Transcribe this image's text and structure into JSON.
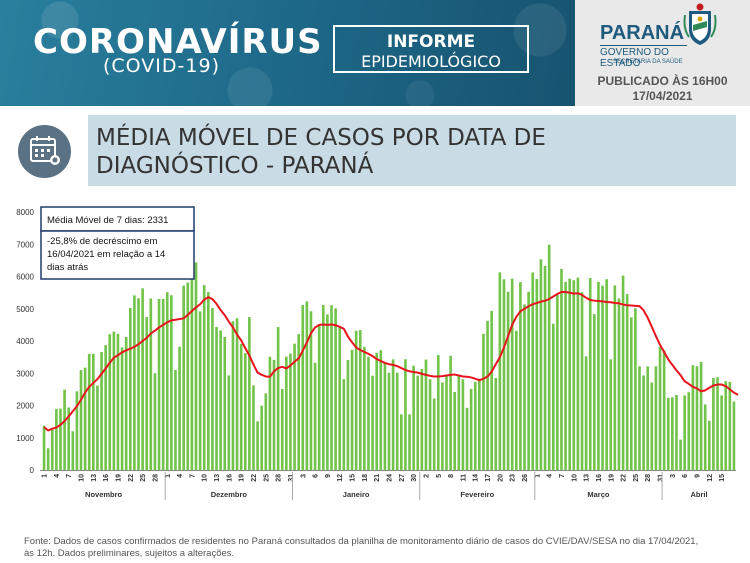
{
  "header": {
    "brand_title": "CORONAVÍRUS",
    "brand_subtitle": "(COVID-19)",
    "informe_line1": "INFORME",
    "informe_line2": "EPIDEMIOLÓGICO",
    "state_name": "PARANÁ",
    "government": "GOVERNO DO ESTADO",
    "secretariat": "SECRETARIA DA SAÚDE",
    "published": "PUBLICADO ÀS 16H00",
    "date": "17/04/2021"
  },
  "section_title_line1": "MÉDIA MÓVEL DE CASOS POR DATA DE",
  "section_title_line2": "DIAGNÓSTICO - PARANÁ",
  "annotation_avg": "Média Móvel de 7 dias: 2331",
  "annotation_change": [
    "-25,8% de decréscimo em",
    "16/04/2021 em relação a 14",
    "dias atrás"
  ],
  "source_line1": "Fonte: Dados de casos confirmados de residentes no Paraná consultados da planilha de monitoramento diário de casos do CVIE/DAV/SESA no dia 17/04/2021,",
  "source_line2": "às 12h. Dados preliminares, sujeitos a alterações.",
  "colors": {
    "bars": "#72c34a",
    "moving_average": "#e8131d",
    "title_box": "#c9dbe4",
    "banner": "#1a5f7a"
  },
  "icons": {
    "section": "calendar-virus-icon",
    "coat_of_arms": "parana-coat-of-arms-icon"
  },
  "chart_data": {
    "type": "bar",
    "ylim": [
      0,
      8000
    ],
    "yticks": [
      0,
      1000,
      2000,
      3000,
      4000,
      5000,
      6000,
      7000,
      8000
    ],
    "grid": false,
    "series": [
      {
        "name": "Casos",
        "type": "bar",
        "values": [
          1375,
          676,
          1254,
          1896,
          1904,
          2492,
          1938,
          1201,
          2440,
          3097,
          3175,
          3599,
          3603,
          2619,
          3658,
          3872,
          4212,
          4292,
          4223,
          3802,
          4125,
          5025,
          5414,
          5325,
          5634,
          4742,
          5317,
          3000,
          5302,
          5305,
          5514,
          5418,
          3102,
          3822,
          5717,
          5814,
          6437,
          6437,
          4917,
          5733,
          5517,
          5021,
          4435,
          4326,
          4125,
          2933,
          4614,
          4704,
          3913,
          3624,
          4746,
          2624,
          1510,
          1993,
          2376,
          3512,
          3414,
          4432,
          2512,
          3516,
          3612,
          3917,
          4211,
          5117,
          5227,
          4924,
          3325,
          4511,
          5117,
          4824,
          5112,
          5012,
          4417,
          2817,
          3412,
          3724,
          4318,
          4338,
          3817,
          3512,
          2924,
          3632,
          3713,
          3332,
          3015,
          3432,
          3017,
          1727,
          3435,
          1727,
          3235,
          2927,
          3134,
          3424,
          2817,
          2217,
          3563,
          2714,
          2925,
          3542,
          2417,
          2932,
          2814,
          1927,
          2516,
          2734,
          2834,
          4223,
          4628,
          4934,
          2854,
          6131,
          5913,
          5524,
          5934,
          4317,
          5826,
          5135,
          5526,
          6125,
          5924,
          6532,
          6332,
          6987,
          4535,
          5434,
          6235,
          5835,
          5934,
          5886,
          5965,
          5516,
          3523,
          5953,
          4834,
          5834,
          5716,
          5915,
          3432,
          5724,
          5316,
          6029,
          5455,
          4735,
          5015,
          3217,
          2931,
          3215,
          2712,
          3217,
          3812,
          3713,
          2238,
          2254,
          2326,
          942,
          2312,
          2413,
          3248,
          3217,
          3356,
          2032,
          1528,
          2854,
          2874,
          2312,
          2755,
          2732,
          2122
        ]
      },
      {
        "name": "Média Móvel de 7 dias",
        "type": "line",
        "values": [
          1330,
          1225,
          1280,
          1320,
          1400,
          1520,
          1660,
          1820,
          1980,
          2180,
          2400,
          2580,
          2700,
          2820,
          2980,
          3150,
          3330,
          3480,
          3560,
          3650,
          3710,
          3760,
          3820,
          3900,
          4000,
          4100,
          4230,
          4320,
          4420,
          4500,
          4580,
          4640,
          4660,
          4680,
          4700,
          4810,
          4930,
          5040,
          5140,
          5280,
          5360,
          5300,
          5150,
          4960,
          4800,
          4600,
          4420,
          4200,
          4020,
          3780,
          3550,
          3270,
          3020,
          2950,
          2900,
          2890,
          3060,
          3160,
          3200,
          3150,
          3240,
          3360,
          3460,
          3700,
          3960,
          4240,
          4420,
          4500,
          4510,
          4500,
          4510,
          4490,
          4440,
          4380,
          4140,
          3960,
          3800,
          3720,
          3660,
          3600,
          3530,
          3440,
          3380,
          3320,
          3280,
          3260,
          3220,
          3160,
          3100,
          3060,
          3040,
          3020,
          2980,
          2950,
          2920,
          2900,
          2900,
          2910,
          2930,
          2950,
          2960,
          2930,
          2900,
          2890,
          2870,
          2830,
          2780,
          2830,
          2900,
          3050,
          3280,
          3500,
          3800,
          4150,
          4500,
          4750,
          4920,
          5000,
          5080,
          5140,
          5180,
          5220,
          5250,
          5300,
          5380,
          5460,
          5520,
          5520,
          5500,
          5470,
          5480,
          5430,
          5340,
          5270,
          5250,
          5240,
          5230,
          5210,
          5200,
          5180,
          5170,
          5130,
          5110,
          5100,
          5090,
          5080,
          4950,
          4720,
          4440,
          4150,
          3880,
          3660,
          3430,
          3260,
          3090,
          2940,
          2750,
          2670,
          2580,
          2530,
          2440,
          2470,
          2550,
          2620,
          2650,
          2650,
          2600,
          2500,
          2400,
          2331
        ]
      }
    ],
    "x_tick_labels": [
      "1",
      "4",
      "7",
      "10",
      "13",
      "16",
      "19",
      "22",
      "25",
      "28",
      "1",
      "4",
      "7",
      "10",
      "13",
      "16",
      "19",
      "22",
      "25",
      "28",
      "31",
      "3",
      "6",
      "9",
      "12",
      "15",
      "18",
      "21",
      "24",
      "27",
      "30",
      "2",
      "5",
      "8",
      "11",
      "14",
      "17",
      "20",
      "23",
      "26",
      "1",
      "4",
      "7",
      "10",
      "13",
      "16",
      "19",
      "22",
      "25",
      "28",
      "31",
      "3",
      "6",
      "9",
      "12",
      "15"
    ],
    "month_labels": [
      "Novembro",
      "Dezembro",
      "Janeiro",
      "Fevereiro",
      "Março",
      "Abril"
    ]
  }
}
